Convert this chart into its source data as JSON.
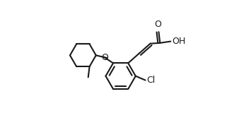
{
  "background": "#ffffff",
  "line_color": "#1a1a1a",
  "line_width": 1.5,
  "fig_width": 3.21,
  "fig_height": 1.84,
  "dpi": 100,
  "xlim": [
    -0.05,
    1.05
  ],
  "ylim": [
    0.0,
    1.0
  ]
}
